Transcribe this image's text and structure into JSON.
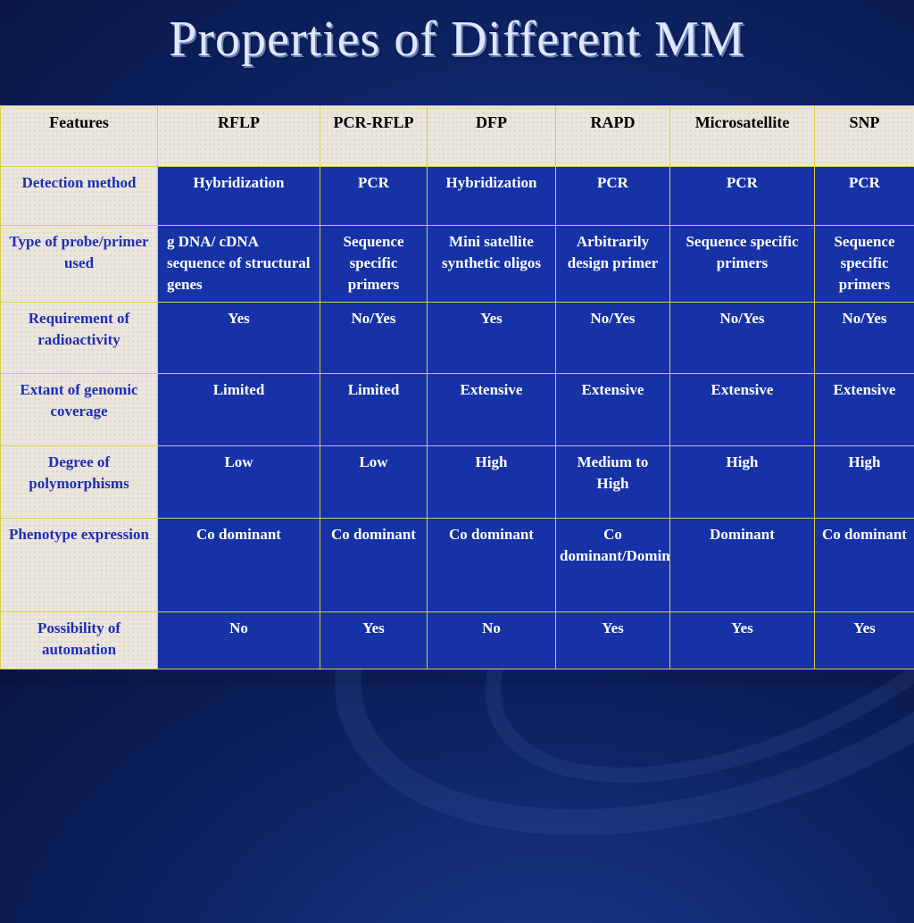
{
  "title": "Properties of Different MM",
  "table": {
    "headers": [
      "Features",
      "RFLP",
      "PCR-RFLP",
      "DFP",
      "RAPD",
      "Microsatellite",
      "SNP"
    ],
    "rows": [
      {
        "feature": "Detection method",
        "cells": [
          "Hybridization",
          "PCR",
          "Hybridization",
          "PCR",
          "PCR",
          "PCR"
        ]
      },
      {
        "feature": "Type of probe/primer used",
        "cells": [
          "g DNA/ cDNA sequence of structural genes",
          "Sequence specific primers",
          "Mini satellite synthetic oligos",
          "Arbitrarily design primer",
          "Sequence specific primers",
          "Sequence specific primers"
        ]
      },
      {
        "feature": "Requirement of radioactivity",
        "cells": [
          "Yes",
          "No/Yes",
          "Yes",
          "No/Yes",
          "No/Yes",
          "No/Yes"
        ]
      },
      {
        "feature": "Extant of genomic coverage",
        "cells": [
          "Limited",
          "Limited",
          "Extensive",
          "Extensive",
          "Extensive",
          "Extensive"
        ]
      },
      {
        "feature": "Degree of polymorphisms",
        "cells": [
          "Low",
          "Low",
          "High",
          "Medium to High",
          "High",
          "High"
        ]
      },
      {
        "feature": "Phenotype expression",
        "cells": [
          "Co dominant",
          "Co dominant",
          "Co dominant",
          "Co dominant/Dominant",
          "Dominant",
          "Co dominant"
        ]
      },
      {
        "feature": "Possibility of automation",
        "cells": [
          "No",
          "Yes",
          "No",
          "Yes",
          "Yes",
          "Yes"
        ]
      }
    ]
  }
}
